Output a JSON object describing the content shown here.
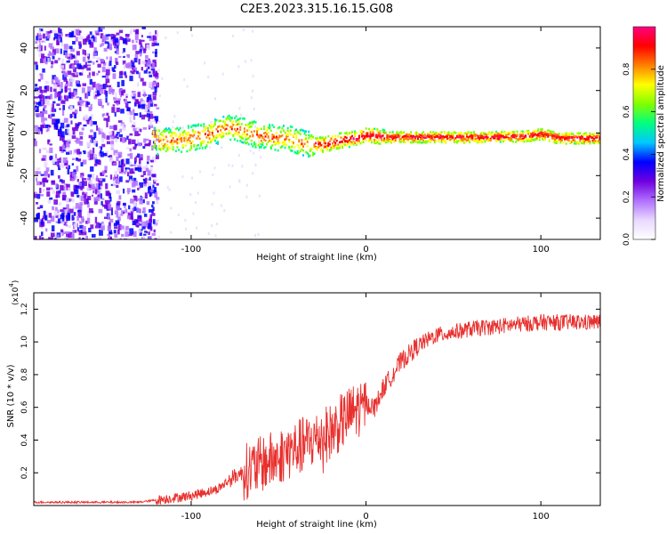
{
  "title": "C2E3.2023.315.16.15.G08",
  "chart_data": [
    {
      "type": "heatmap",
      "name": "spectrogram",
      "xlabel": "Height of straight line (km)",
      "ylabel": "Frequency (Hz)",
      "xlim": [
        -190,
        134
      ],
      "ylim": [
        -50,
        50
      ],
      "xticks": [
        -100,
        0,
        100
      ],
      "yticks": [
        -40,
        -20,
        0,
        20,
        40
      ],
      "colorbar": {
        "label": "Normalized spectral amplitude",
        "range": [
          0,
          1
        ],
        "ticks": [
          "0.0",
          "0.2",
          "0.4",
          "0.6",
          "0.8"
        ],
        "colors": [
          "#ffffff",
          "#e8d8ff",
          "#b070ff",
          "#7000e0",
          "#0000ff",
          "#00c8ff",
          "#00ff80",
          "#80ff00",
          "#ffff00",
          "#ff8000",
          "#ff0000",
          "#ff0080"
        ]
      },
      "noise_region_x": [
        -190,
        -120
      ],
      "signal_track": [
        {
          "x": -120,
          "f": -3.5
        },
        {
          "x": -100,
          "f": -2
        },
        {
          "x": -90,
          "f": 0
        },
        {
          "x": -80,
          "f": 3
        },
        {
          "x": -72,
          "f": 2
        },
        {
          "x": -65,
          "f": 0
        },
        {
          "x": -55,
          "f": -1.5
        },
        {
          "x": -45,
          "f": -2
        },
        {
          "x": -35,
          "f": -4.5
        },
        {
          "x": -25,
          "f": -5
        },
        {
          "x": -15,
          "f": -3
        },
        {
          "x": -5,
          "f": -2
        },
        {
          "x": 0,
          "f": -0.5
        },
        {
          "x": 10,
          "f": -1.5
        },
        {
          "x": 30,
          "f": -1.5
        },
        {
          "x": 60,
          "f": -1.5
        },
        {
          "x": 90,
          "f": -1.2
        },
        {
          "x": 100,
          "f": 0
        },
        {
          "x": 110,
          "f": -2
        },
        {
          "x": 134,
          "f": -2
        }
      ]
    },
    {
      "type": "line",
      "name": "snr",
      "xlabel": "Height of straight line (km)",
      "ylabel": "SNR (10 * v/v)",
      "yscale_label": "(x10",
      "yscale_exp": "4",
      "xlim": [
        -190,
        134
      ],
      "ylim": [
        0,
        1.3
      ],
      "xticks": [
        -100,
        0,
        100
      ],
      "yticks": [
        0.2,
        0.4,
        0.6,
        0.8,
        1.0,
        1.2
      ],
      "ytick_labels": [
        "0.2",
        "0.4",
        "0.6",
        "0.8",
        "1.0",
        "1.2"
      ],
      "color": "#e8302e",
      "trend": [
        {
          "x": -190,
          "y": 0.02
        },
        {
          "x": -130,
          "y": 0.02
        },
        {
          "x": -115,
          "y": 0.04
        },
        {
          "x": -100,
          "y": 0.06
        },
        {
          "x": -85,
          "y": 0.1
        },
        {
          "x": -75,
          "y": 0.18
        },
        {
          "x": -60,
          "y": 0.25
        },
        {
          "x": -50,
          "y": 0.3
        },
        {
          "x": -40,
          "y": 0.35
        },
        {
          "x": -30,
          "y": 0.4
        },
        {
          "x": -20,
          "y": 0.45
        },
        {
          "x": -10,
          "y": 0.55
        },
        {
          "x": 0,
          "y": 0.62
        },
        {
          "x": 5,
          "y": 0.6
        },
        {
          "x": 10,
          "y": 0.72
        },
        {
          "x": 20,
          "y": 0.88
        },
        {
          "x": 30,
          "y": 0.98
        },
        {
          "x": 40,
          "y": 1.04
        },
        {
          "x": 60,
          "y": 1.08
        },
        {
          "x": 80,
          "y": 1.1
        },
        {
          "x": 100,
          "y": 1.12
        },
        {
          "x": 134,
          "y": 1.12
        }
      ]
    }
  ]
}
